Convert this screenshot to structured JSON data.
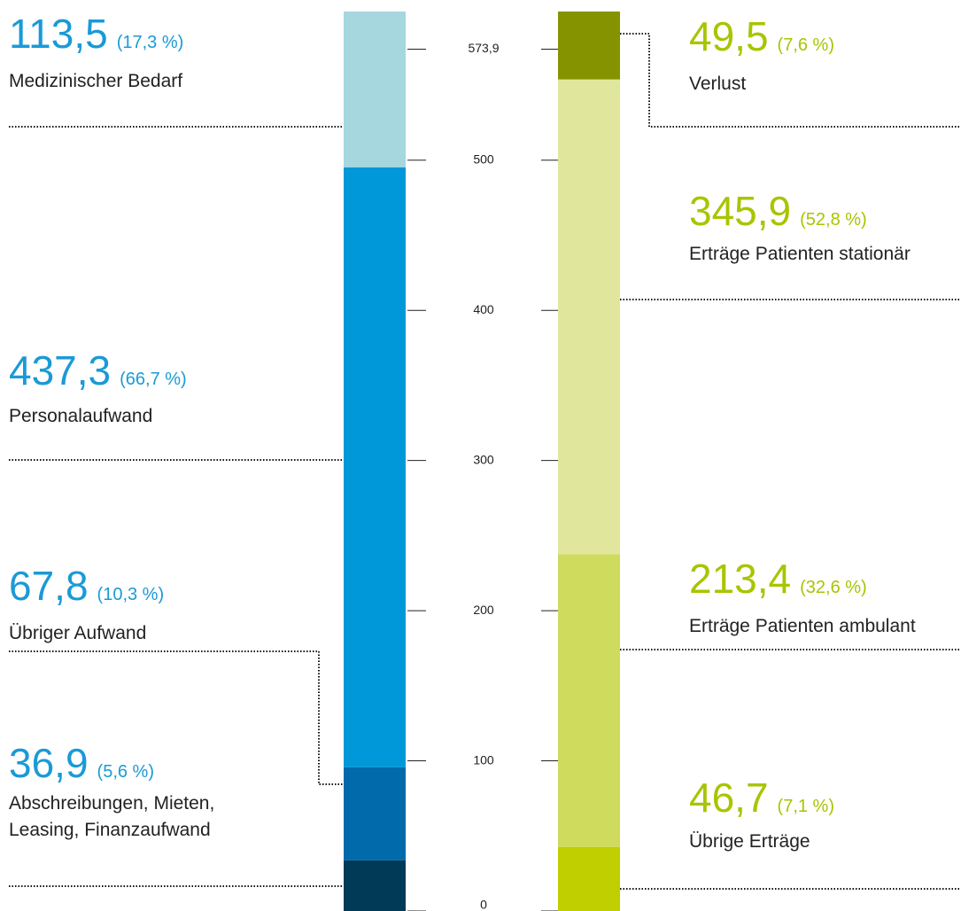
{
  "chart_data": {
    "type": "stacked_bar",
    "ylim": [
      0,
      655.5
    ],
    "y2lim": [
      0,
      599
    ],
    "y2ticks": [
      0,
      100,
      200,
      300,
      400,
      500,
      {
        "value": 573.9,
        "label": "573,9"
      }
    ],
    "stacks": [
      {
        "text_color": "#1a9ad6",
        "segments": [
          {
            "name": "Abschreibungen, Mieten, Leasing, Finanzaufwand",
            "value": 36.9,
            "value_label": "36,9",
            "share": 5.6,
            "share_label": "(5,6 %)",
            "color": "#003a57"
          },
          {
            "name": "Übriger Aufwand",
            "value": 67.8,
            "value_label": "67,8",
            "share": 10.3,
            "share_label": "(10,3 %)",
            "color": "#006aaa"
          },
          {
            "name": "Personalaufwand",
            "value": 437.3,
            "value_label": "437,3",
            "share": 66.7,
            "share_label": "(66,7 %)",
            "color": "#0098d8"
          },
          {
            "name": "Medizinischer Bedarf",
            "value": 113.5,
            "value_label": "113,5",
            "share": 17.3,
            "share_label": "(17,3 %)",
            "color": "#a6d7df"
          }
        ]
      },
      {
        "text_color": "#a9c400",
        "segments": [
          {
            "name": "Übrige Erträge",
            "value": 46.7,
            "value_label": "46,7",
            "share": 7.1,
            "share_label": "(7,1 %)",
            "color": "#c0cf00"
          },
          {
            "name": "Erträge Patienten ambulant",
            "value": 213.4,
            "value_label": "213,4",
            "share": 32.6,
            "share_label": "(32,6 %)",
            "color": "#cfdb5c"
          },
          {
            "name": "Erträge Patienten stationär",
            "value": 345.9,
            "value_label": "345,9",
            "share": 52.8,
            "share_label": "(52,8 %)",
            "color": "#e0e79d"
          },
          {
            "name": "Verlust",
            "value": 49.5,
            "value_label": "49,5",
            "share": 7.6,
            "share_label": "(7,6 %)",
            "color": "#869300"
          }
        ]
      }
    ]
  }
}
